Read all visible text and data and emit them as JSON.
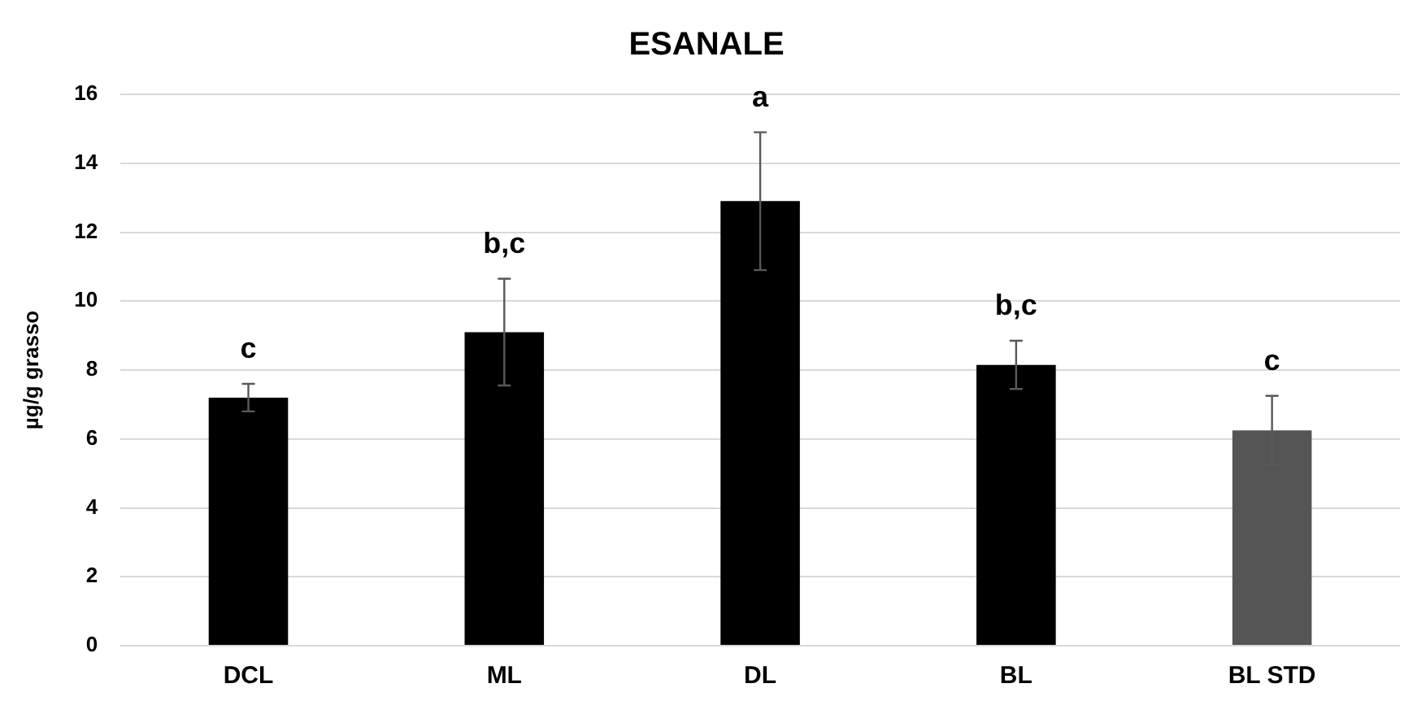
{
  "chart_data": {
    "type": "bar",
    "title": "ESANALE",
    "ylabel": "µg/g grasso",
    "categories": [
      "DCL",
      "ML",
      "DL",
      "BL",
      "BL STD"
    ],
    "values": [
      7.2,
      9.1,
      12.9,
      8.15,
      6.25
    ],
    "colors": [
      "#000000",
      "#000000",
      "#000000",
      "#000000",
      "#555555"
    ],
    "errors": [
      0.4,
      1.55,
      2.0,
      0.7,
      1.0
    ],
    "ylim": [
      0,
      16
    ],
    "yticks": [
      0,
      2,
      4,
      6,
      8,
      10,
      12,
      14,
      16
    ],
    "grid": "y",
    "legend": false,
    "annotations": [
      {
        "text": "c",
        "x": "DCL",
        "y": 7.6
      },
      {
        "text": "b,c",
        "x": "ML",
        "y": 10.65
      },
      {
        "text": "a",
        "x": "DL",
        "y": 14.9
      },
      {
        "text": "b,c",
        "x": "BL",
        "y": 8.85
      },
      {
        "text": "c",
        "x": "BL STD",
        "y": 7.25
      }
    ]
  }
}
